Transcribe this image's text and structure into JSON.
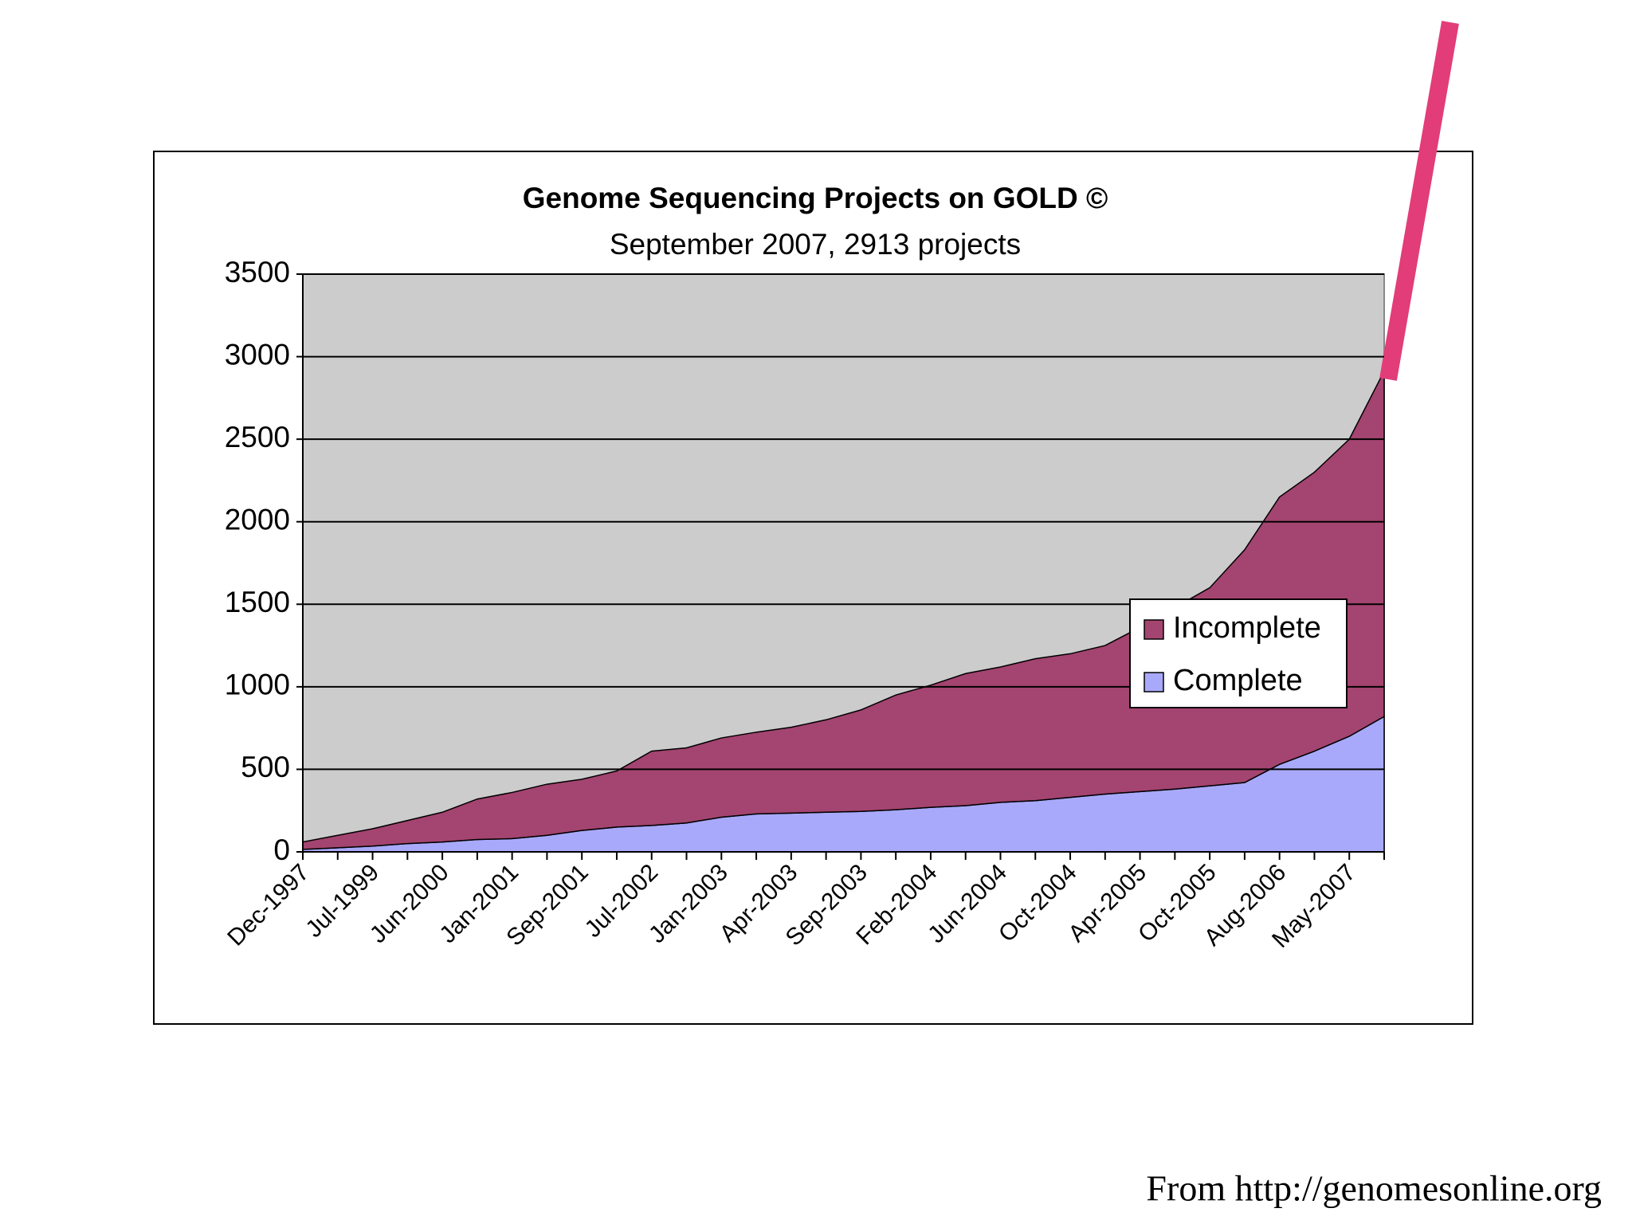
{
  "chart_data": {
    "type": "area",
    "title": "Genome Sequencing Projects on GOLD ©",
    "subtitle": "September 2007, 2913 projects",
    "categories": [
      "Dec-1997",
      null,
      "Jul-1999",
      null,
      "Jun-2000",
      null,
      "Jan-2001",
      null,
      "Sep-2001",
      null,
      "Jul-2002",
      null,
      "Jan-2003",
      null,
      "Apr-2003",
      null,
      "Sep-2003",
      null,
      "Feb-2004",
      null,
      "Jun-2004",
      null,
      "Oct-2004",
      null,
      "Apr-2005",
      null,
      "Oct-2005",
      null,
      "Aug-2006",
      null,
      "May-2007",
      null
    ],
    "series": [
      {
        "name": "Complete",
        "color": "#a9a9fc",
        "values": [
          15,
          25,
          35,
          50,
          60,
          75,
          80,
          100,
          130,
          150,
          160,
          175,
          210,
          230,
          235,
          240,
          245,
          255,
          270,
          280,
          300,
          310,
          330,
          350,
          365,
          380,
          400,
          420,
          530,
          610,
          700,
          820
        ]
      },
      {
        "name": "Incomplete",
        "color": "#a44470",
        "values": [
          45,
          75,
          105,
          140,
          180,
          245,
          280,
          310,
          310,
          340,
          450,
          455,
          480,
          495,
          520,
          560,
          615,
          695,
          740,
          800,
          820,
          860,
          870,
          900,
          995,
          1100,
          1200,
          1410,
          1620,
          1690,
          1800,
          2093
        ]
      }
    ],
    "stacked": true,
    "ylim": [
      0,
      3500
    ],
    "yticks": [
      0,
      500,
      1000,
      1500,
      2000,
      2500,
      3000,
      3500
    ],
    "grid": true,
    "note": "From http://genomesonline.org"
  }
}
